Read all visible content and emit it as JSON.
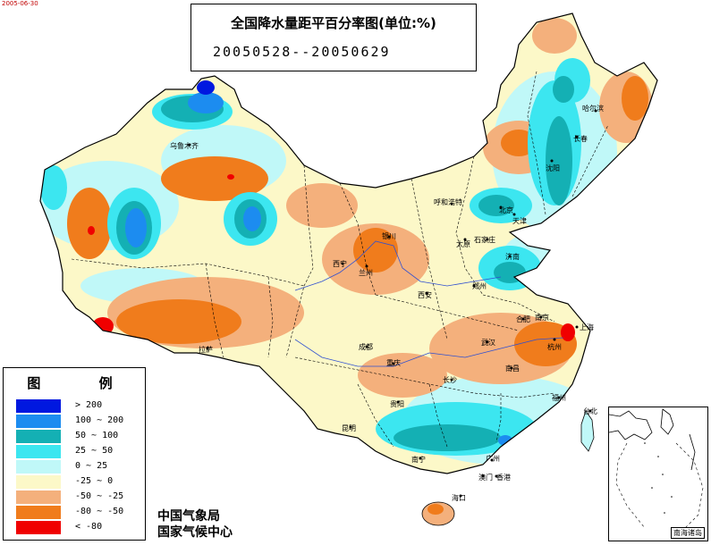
{
  "title": {
    "main": "全国降水量距平百分率图(单位:%)",
    "period": "20050528--20050629"
  },
  "top_mark": "2005-06-30",
  "legend": {
    "title": "图 例",
    "items": [
      {
        "label": "> 200",
        "color": "#0018e0"
      },
      {
        "label": "100 ~ 200",
        "color": "#1c8cf0"
      },
      {
        "label": "50 ~ 100",
        "color": "#14b0b4"
      },
      {
        "label": "25 ~ 50",
        "color": "#3ce6f0"
      },
      {
        "label": "0 ~ 25",
        "color": "#c0f8f8"
      },
      {
        "label": "-25 ~ 0",
        "color": "#fcf8c8"
      },
      {
        "label": "-50 ~ -25",
        "color": "#f4b07c"
      },
      {
        "label": "-80 ~ -50",
        "color": "#f07c1c"
      },
      {
        "label": "< -80",
        "color": "#f00000"
      }
    ]
  },
  "source": {
    "line1": "中国气象局",
    "line2": "国家气候中心"
  },
  "inset_label": "南海诸岛",
  "cities": [
    {
      "name": "哈尔滨"
    },
    {
      "name": "长春"
    },
    {
      "name": "沈阳"
    },
    {
      "name": "呼和浩特"
    },
    {
      "name": "北京"
    },
    {
      "name": "天津"
    },
    {
      "name": "太原"
    },
    {
      "name": "石家庄"
    },
    {
      "name": "济南"
    },
    {
      "name": "银川"
    },
    {
      "name": "兰州"
    },
    {
      "name": "西宁"
    },
    {
      "name": "西安"
    },
    {
      "name": "郑州"
    },
    {
      "name": "乌鲁木齐"
    },
    {
      "name": "拉萨"
    },
    {
      "name": "成都"
    },
    {
      "name": "重庆"
    },
    {
      "name": "贵阳"
    },
    {
      "name": "昆明"
    },
    {
      "name": "南宁"
    },
    {
      "name": "广州"
    },
    {
      "name": "香港"
    },
    {
      "name": "澳门"
    },
    {
      "name": "海口"
    },
    {
      "name": "长沙"
    },
    {
      "name": "武汉"
    },
    {
      "name": "南昌"
    },
    {
      "name": "合肥"
    },
    {
      "name": "南京"
    },
    {
      "name": "上海"
    },
    {
      "name": "杭州"
    },
    {
      "name": "福州"
    },
    {
      "name": "台北"
    }
  ]
}
